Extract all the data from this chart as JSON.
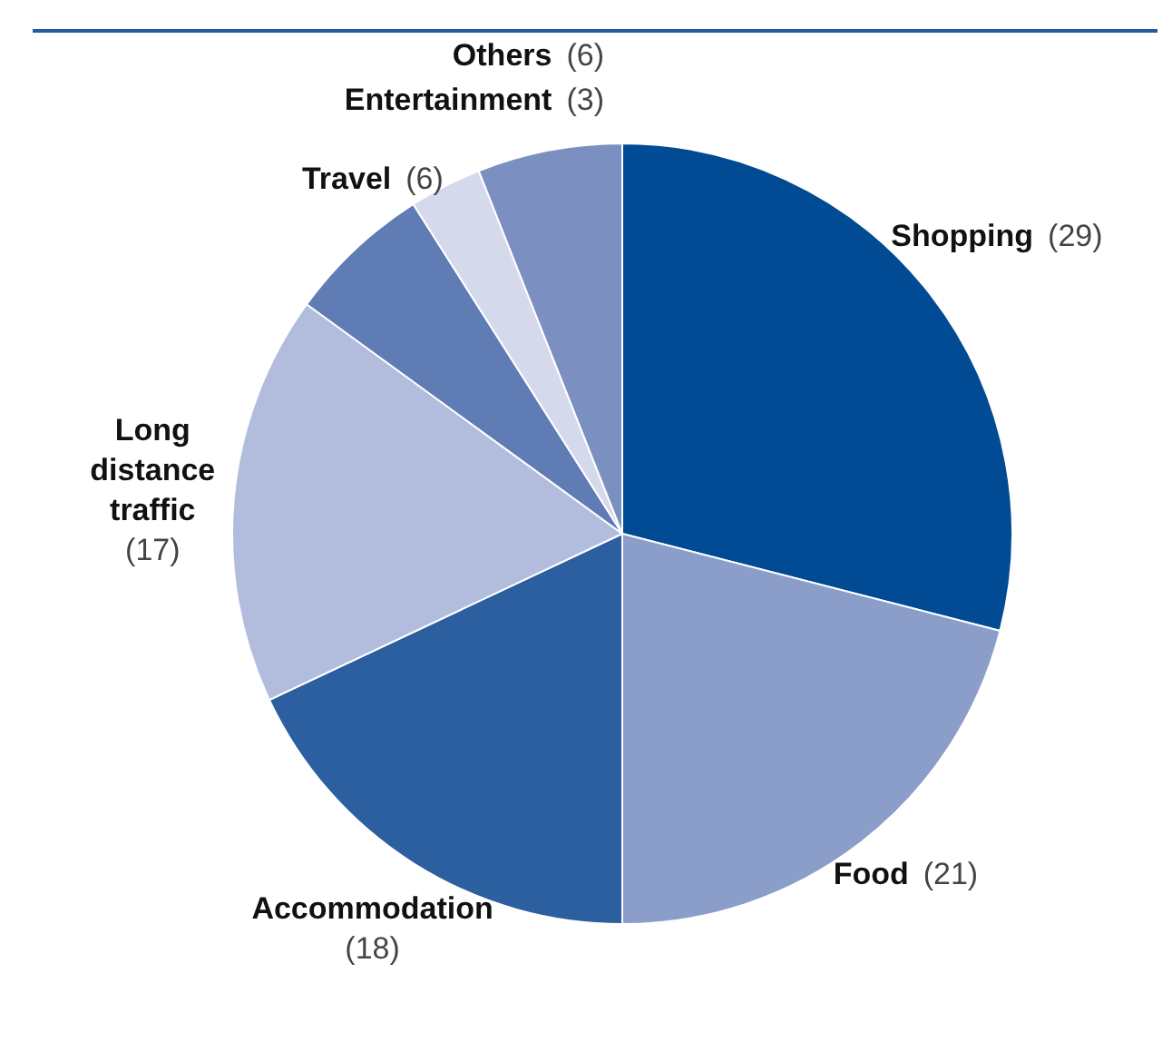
{
  "chart_data": {
    "type": "pie",
    "categories": [
      "Shopping",
      "Food",
      "Accommodation",
      "Long distance traffic",
      "Travel",
      "Entertainment",
      "Others"
    ],
    "values": [
      29,
      21,
      18,
      17,
      6,
      3,
      6
    ],
    "colors": [
      "#004b93",
      "#8b9dc9",
      "#2b5f9f",
      "#b2bcdd",
      "#5f7cb5",
      "#d5d9ec",
      "#7b90c0"
    ],
    "value_labels": [
      "(29)",
      "(21)",
      "(18)",
      "(17)",
      "(6)",
      "(3)",
      "(6)"
    ]
  }
}
